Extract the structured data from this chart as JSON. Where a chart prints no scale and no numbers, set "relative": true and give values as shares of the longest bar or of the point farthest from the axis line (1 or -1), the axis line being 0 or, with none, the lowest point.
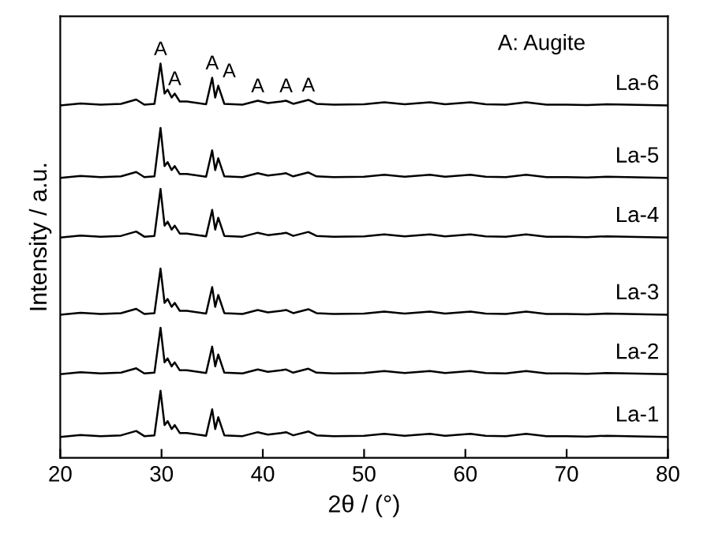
{
  "chart_data": {
    "type": "line",
    "xlabel": "2θ / (°)",
    "ylabel": "Intensity / a.u.",
    "relative": true,
    "legend": false,
    "grid": false,
    "tick_labels": "x",
    "xlim": [
      20,
      80
    ],
    "xticks": [
      20,
      30,
      40,
      50,
      60,
      70,
      80
    ],
    "x": [
      20,
      22,
      24,
      26,
      27.5,
      28.3,
      29.3,
      29.9,
      30.3,
      30.6,
      31.0,
      31.3,
      31.8,
      32.5,
      34.4,
      35.0,
      35.3,
      35.6,
      36.2,
      38,
      39.5,
      40.5,
      41.8,
      42.3,
      43,
      44.5,
      45.3,
      47,
      50,
      52,
      54,
      55.5,
      56.5,
      58,
      60.5,
      62,
      64,
      66,
      68,
      70,
      72,
      74,
      76,
      78,
      80
    ],
    "series": [
      {
        "name": "La-6",
        "color": "#000000",
        "values": [
          0.894,
          0.899,
          0.896,
          0.898,
          0.909,
          0.896,
          0.898,
          1.0,
          0.924,
          0.934,
          0.914,
          0.924,
          0.904,
          0.904,
          0.897,
          0.964,
          0.914,
          0.944,
          0.898,
          0.896,
          0.906,
          0.9,
          0.904,
          0.906,
          0.898,
          0.908,
          0.898,
          0.896,
          0.897,
          0.902,
          0.897,
          0.9,
          0.902,
          0.897,
          0.902,
          0.897,
          0.896,
          0.902,
          0.896,
          0.896,
          0.895,
          0.897,
          0.896,
          0.895,
          0.894
        ]
      },
      {
        "name": "La-5",
        "color": "#000000",
        "values": [
          0.71,
          0.715,
          0.712,
          0.714,
          0.725,
          0.712,
          0.714,
          0.837,
          0.74,
          0.75,
          0.73,
          0.74,
          0.72,
          0.72,
          0.713,
          0.78,
          0.73,
          0.76,
          0.714,
          0.712,
          0.722,
          0.716,
          0.72,
          0.722,
          0.714,
          0.724,
          0.714,
          0.712,
          0.713,
          0.718,
          0.713,
          0.716,
          0.718,
          0.713,
          0.718,
          0.713,
          0.712,
          0.718,
          0.712,
          0.712,
          0.711,
          0.713,
          0.712,
          0.711,
          0.71
        ]
      },
      {
        "name": "La-4",
        "color": "#000000",
        "values": [
          0.559,
          0.564,
          0.561,
          0.563,
          0.574,
          0.561,
          0.563,
          0.682,
          0.589,
          0.599,
          0.579,
          0.589,
          0.569,
          0.569,
          0.562,
          0.629,
          0.579,
          0.609,
          0.563,
          0.561,
          0.571,
          0.565,
          0.569,
          0.571,
          0.563,
          0.573,
          0.563,
          0.561,
          0.562,
          0.567,
          0.562,
          0.565,
          0.567,
          0.562,
          0.567,
          0.562,
          0.561,
          0.567,
          0.561,
          0.561,
          0.56,
          0.562,
          0.561,
          0.56,
          0.559
        ]
      },
      {
        "name": "La-3",
        "color": "#000000",
        "values": [
          0.363,
          0.368,
          0.365,
          0.367,
          0.378,
          0.365,
          0.367,
          0.48,
          0.393,
          0.403,
          0.383,
          0.393,
          0.373,
          0.373,
          0.366,
          0.433,
          0.383,
          0.413,
          0.367,
          0.365,
          0.375,
          0.369,
          0.373,
          0.375,
          0.367,
          0.377,
          0.367,
          0.365,
          0.366,
          0.371,
          0.366,
          0.369,
          0.371,
          0.366,
          0.371,
          0.366,
          0.365,
          0.371,
          0.365,
          0.365,
          0.364,
          0.366,
          0.365,
          0.364,
          0.363
        ]
      },
      {
        "name": "La-2",
        "color": "#000000",
        "values": [
          0.212,
          0.217,
          0.214,
          0.216,
          0.227,
          0.214,
          0.216,
          0.33,
          0.242,
          0.252,
          0.232,
          0.242,
          0.222,
          0.222,
          0.215,
          0.282,
          0.232,
          0.262,
          0.216,
          0.214,
          0.224,
          0.218,
          0.222,
          0.224,
          0.216,
          0.226,
          0.216,
          0.214,
          0.215,
          0.22,
          0.215,
          0.218,
          0.22,
          0.215,
          0.22,
          0.215,
          0.214,
          0.22,
          0.214,
          0.214,
          0.213,
          0.215,
          0.214,
          0.213,
          0.212
        ]
      },
      {
        "name": "La-1",
        "color": "#000000",
        "values": [
          0.053,
          0.058,
          0.055,
          0.057,
          0.068,
          0.055,
          0.057,
          0.17,
          0.083,
          0.093,
          0.073,
          0.083,
          0.063,
          0.063,
          0.056,
          0.123,
          0.073,
          0.103,
          0.057,
          0.055,
          0.065,
          0.059,
          0.063,
          0.065,
          0.057,
          0.067,
          0.057,
          0.055,
          0.056,
          0.061,
          0.056,
          0.059,
          0.061,
          0.056,
          0.061,
          0.056,
          0.055,
          0.061,
          0.055,
          0.055,
          0.054,
          0.056,
          0.055,
          0.054,
          0.053
        ]
      }
    ],
    "annotations": [
      "A: Augite",
      {
        "text": "A",
        "x": 29.9,
        "y": 1.0
      },
      {
        "text": "A",
        "x": 31.3,
        "y": 0.924
      },
      {
        "text": "A",
        "x": 35.0,
        "y": 0.964
      },
      {
        "text": "A",
        "x": 35.6,
        "y": 0.944
      },
      {
        "text": "A",
        "x": 39.5,
        "y": 0.906
      },
      {
        "text": "A",
        "x": 42.3,
        "y": 0.906
      },
      {
        "text": "A",
        "x": 44.5,
        "y": 0.908
      }
    ]
  }
}
